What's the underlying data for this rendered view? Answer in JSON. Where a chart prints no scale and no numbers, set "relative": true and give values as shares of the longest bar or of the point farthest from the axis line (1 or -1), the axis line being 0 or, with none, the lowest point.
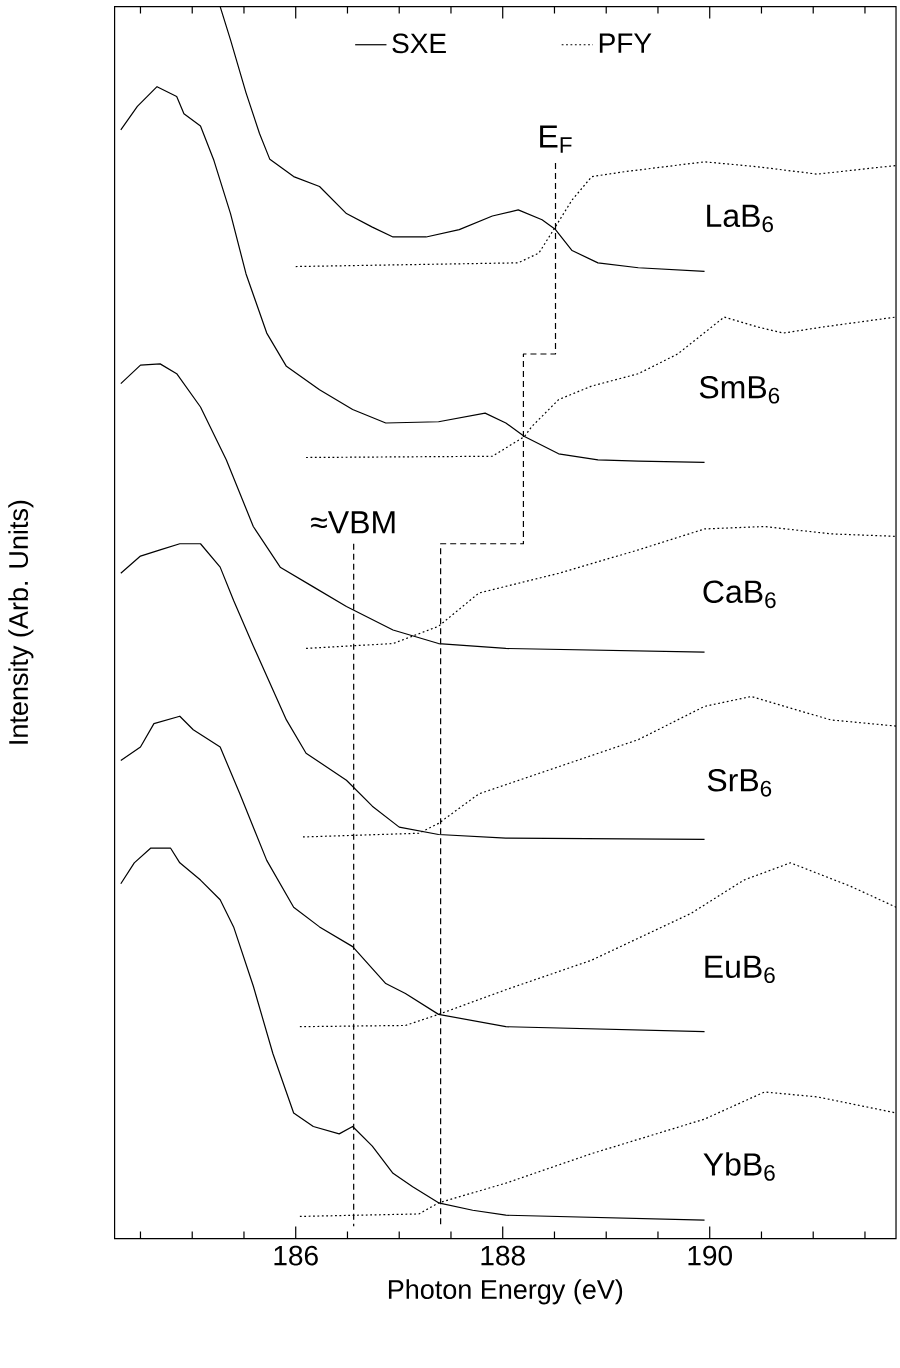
{
  "chart_data": {
    "type": "line",
    "xlabel": "Photon Energy (eV)",
    "ylabel": "Intensity (Arb. Units)",
    "relative": true,
    "legend": "top",
    "xlim": [
      184.25,
      191.8
    ],
    "xticks": [
      {
        "value": 184.5,
        "label": null
      },
      {
        "value": 185,
        "label": null
      },
      {
        "value": 185.5,
        "label": null
      },
      186,
      {
        "value": 186.5,
        "label": null
      },
      {
        "value": 187,
        "label": null
      },
      {
        "value": 187.5,
        "label": null
      },
      188,
      {
        "value": 188.5,
        "label": null
      },
      {
        "value": 189,
        "label": null
      },
      {
        "value": 189.5,
        "label": null
      },
      190,
      {
        "value": 190.5,
        "label": null
      },
      {
        "value": 191,
        "label": null
      },
      {
        "value": 191.5,
        "label": null
      }
    ],
    "series": [
      {
        "name": "SXE",
        "color": "#000000",
        "line_style": "solid",
        "x": [
          185.27,
          185.37,
          185.52,
          185.65,
          185.75,
          185.98,
          186.23,
          186.49,
          186.74,
          186.94,
          187.26,
          187.58,
          187.9,
          188.15,
          188.38,
          188.51,
          188.67,
          188.92,
          189.31,
          189.95
        ],
        "values": [
          1.0,
          0.973,
          0.93,
          0.897,
          0.876,
          0.862,
          0.854,
          0.832,
          0.821,
          0.813,
          0.813,
          0.819,
          0.83,
          0.835,
          0.827,
          0.819,
          0.802,
          0.792,
          0.788,
          0.785
        ]
      },
      {
        "name": "PFY",
        "color": "#000000",
        "line_style": "dotted",
        "x": [
          186.0,
          188.15,
          188.35,
          188.47,
          188.67,
          188.86,
          189.18,
          189.95,
          190.46,
          191.04,
          191.36,
          191.8
        ],
        "values": [
          0.789,
          0.792,
          0.8,
          0.816,
          0.843,
          0.862,
          0.866,
          0.874,
          0.87,
          0.864,
          0.867,
          0.871
        ]
      },
      {
        "color": "#000000",
        "line_style": "solid",
        "x": [
          184.31,
          184.47,
          184.66,
          184.85,
          184.92,
          185.08,
          185.21,
          185.37,
          185.52,
          185.72,
          185.91,
          186.23,
          186.55,
          186.87,
          187.38,
          187.83,
          188.03,
          188.21,
          188.54,
          188.92,
          189.31,
          189.95
        ],
        "values": [
          0.9,
          0.919,
          0.935,
          0.927,
          0.913,
          0.903,
          0.875,
          0.832,
          0.783,
          0.735,
          0.708,
          0.689,
          0.673,
          0.662,
          0.663,
          0.67,
          0.662,
          0.651,
          0.637,
          0.632,
          0.631,
          0.63
        ]
      },
      {
        "color": "#000000",
        "line_style": "dotted",
        "x": [
          186.1,
          187.9,
          188.21,
          188.28,
          188.54,
          188.86,
          189.31,
          189.69,
          190.14,
          190.46,
          190.71,
          191.1,
          191.8
        ],
        "values": [
          0.634,
          0.635,
          0.651,
          0.659,
          0.681,
          0.692,
          0.702,
          0.718,
          0.748,
          0.74,
          0.735,
          0.74,
          0.748
        ]
      },
      {
        "color": "#000000",
        "line_style": "solid",
        "x": [
          184.31,
          184.5,
          184.69,
          184.85,
          185.08,
          185.33,
          185.59,
          185.85,
          186.17,
          186.49,
          186.94,
          187.38,
          188.03,
          189.95
        ],
        "values": [
          0.694,
          0.709,
          0.71,
          0.702,
          0.675,
          0.632,
          0.578,
          0.545,
          0.529,
          0.513,
          0.494,
          0.483,
          0.479,
          0.476
        ]
      },
      {
        "color": "#000000",
        "line_style": "dotted",
        "x": [
          186.1,
          186.94,
          187.38,
          187.77,
          188.54,
          189.31,
          189.95,
          190.53,
          191.17,
          191.8
        ],
        "values": [
          0.479,
          0.483,
          0.497,
          0.524,
          0.54,
          0.559,
          0.576,
          0.578,
          0.572,
          0.57
        ]
      },
      {
        "color": "#000000",
        "line_style": "solid",
        "x": [
          184.31,
          184.5,
          184.69,
          184.88,
          185.08,
          185.27,
          185.4,
          185.59,
          185.91,
          186.1,
          186.49,
          186.74,
          187.0,
          187.38,
          188.03,
          189.95
        ],
        "values": [
          0.54,
          0.554,
          0.559,
          0.564,
          0.564,
          0.545,
          0.518,
          0.481,
          0.421,
          0.394,
          0.372,
          0.351,
          0.334,
          0.328,
          0.325,
          0.324
        ]
      },
      {
        "color": "#000000",
        "line_style": "dotted",
        "x": [
          186.07,
          187.19,
          187.38,
          187.77,
          188.54,
          189.31,
          189.95,
          190.4,
          191.17,
          191.8
        ],
        "values": [
          0.326,
          0.329,
          0.337,
          0.361,
          0.383,
          0.405,
          0.432,
          0.44,
          0.421,
          0.416
        ]
      },
      {
        "color": "#000000",
        "line_style": "solid",
        "x": [
          184.31,
          184.5,
          184.63,
          184.88,
          185.01,
          185.27,
          185.46,
          185.72,
          185.98,
          186.23,
          186.55,
          186.87,
          187.06,
          187.38,
          188.03,
          189.95
        ],
        "values": [
          0.388,
          0.399,
          0.418,
          0.424,
          0.413,
          0.399,
          0.361,
          0.307,
          0.269,
          0.253,
          0.237,
          0.207,
          0.199,
          0.182,
          0.172,
          0.168
        ]
      },
      {
        "color": "#000000",
        "line_style": "dotted",
        "x": [
          186.04,
          187.06,
          187.38,
          188.03,
          188.86,
          189.82,
          190.33,
          190.78,
          191.36,
          191.8
        ],
        "values": [
          0.172,
          0.173,
          0.182,
          0.202,
          0.226,
          0.264,
          0.291,
          0.305,
          0.286,
          0.269
        ]
      },
      {
        "color": "#000000",
        "line_style": "solid",
        "x": [
          184.31,
          184.44,
          184.6,
          184.79,
          184.88,
          185.08,
          185.27,
          185.4,
          185.59,
          185.78,
          185.98,
          186.17,
          186.42,
          186.55,
          186.74,
          186.94,
          187.13,
          187.38,
          187.71,
          188.03,
          189.95
        ],
        "values": [
          0.288,
          0.305,
          0.317,
          0.317,
          0.305,
          0.291,
          0.275,
          0.253,
          0.205,
          0.15,
          0.102,
          0.091,
          0.085,
          0.091,
          0.075,
          0.053,
          0.042,
          0.029,
          0.023,
          0.019,
          0.015
        ]
      },
      {
        "color": "#000000",
        "line_style": "dotted",
        "x": [
          186.04,
          187.19,
          187.38,
          188.03,
          188.86,
          189.95,
          190.53,
          191.04,
          191.8
        ],
        "values": [
          0.018,
          0.02,
          0.029,
          0.045,
          0.069,
          0.097,
          0.119,
          0.115,
          0.102
        ]
      },
      {
        "color": "#000000",
        "line_style": "dashed",
        "x": [
          188.51,
          188.51,
          188.2,
          188.2,
          187.4,
          187.4
        ],
        "values": [
          0.873,
          0.718,
          0.718,
          0.564,
          0.564,
          0.01
        ]
      },
      {
        "color": "#000000",
        "line_style": "dashed",
        "x": [
          186.56,
          186.56
        ],
        "values": [
          0.564,
          0.01
        ]
      }
    ],
    "annotations": [
      "LaB$_{6}$",
      "SmB$_{6}$",
      "CaB$_{6}$",
      "SrB$_{6}$",
      "EuB$_{6}$",
      "YbB$_{6}$",
      "E$_{F}$",
      "≈VBM"
    ]
  }
}
